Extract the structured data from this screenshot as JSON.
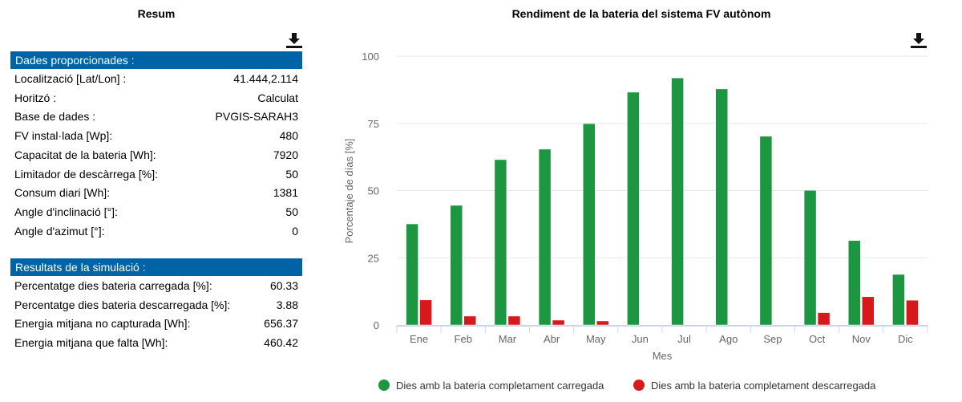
{
  "summary": {
    "title": "Resum",
    "provided_header": "Dades proporcionades :",
    "provided": [
      [
        "Localització [Lat/Lon] :",
        "41.444,2.114"
      ],
      [
        "Horitzó :",
        "Calculat"
      ],
      [
        "Base de dades :",
        "PVGIS-SARAH3"
      ],
      [
        "FV instal·lada [Wp]:",
        "480"
      ],
      [
        "Capacitat de la bateria [Wh]:",
        "7920"
      ],
      [
        "Limitador de descàrrega [%]:",
        "50"
      ],
      [
        "Consum diari [Wh]:",
        "1381"
      ],
      [
        "Angle d'inclinació [°]:",
        "50"
      ],
      [
        "Angle d'azimut [°]:",
        "0"
      ]
    ],
    "results_header": "Resultats de la simulació :",
    "results": [
      [
        "Percentatge dies bateria carregada [%]:",
        "60.33"
      ],
      [
        "Percentatge dies bateria descarregada [%]:",
        "3.88"
      ],
      [
        "Energia mitjana no capturada [Wh]:",
        "656.37"
      ],
      [
        "Energia mitjana que falta [Wh]:",
        "460.42"
      ]
    ]
  },
  "icons": {
    "download": "download-icon"
  },
  "chart_data": {
    "type": "bar",
    "title": "Rendiment de la bateria del sistema FV autònom",
    "xlabel": "Mes",
    "ylabel": "Porcentaje de días [%]",
    "ylim": [
      0,
      100
    ],
    "yticks": [
      "0",
      "25",
      "50",
      "75",
      "100"
    ],
    "grid": true,
    "legend_placement": "bottom",
    "categories": [
      "Ene",
      "Feb",
      "Mar",
      "Abr",
      "May",
      "Jun",
      "Jul",
      "Ago",
      "Sep",
      "Oct",
      "Nov",
      "Dic"
    ],
    "series": [
      {
        "name": "Dies amb la bateria completament carregada",
        "color": "#1c9641",
        "values": [
          37.6,
          44.5,
          61.5,
          65.4,
          74.9,
          86.6,
          91.9,
          87.8,
          70.2,
          50.1,
          31.4,
          18.8
        ]
      },
      {
        "name": "Dies amb la bateria completament descarregada",
        "color": "#d7191c",
        "values": [
          9.3,
          3.3,
          3.3,
          1.8,
          1.5,
          0,
          0,
          0,
          0,
          4.6,
          10.5,
          9.2
        ]
      }
    ]
  }
}
